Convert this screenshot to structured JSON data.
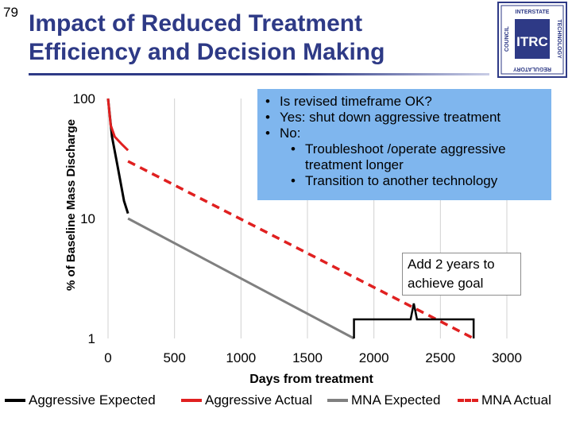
{
  "slide_number": "79",
  "title": {
    "line1": "Impact of Reduced Treatment",
    "line2": "Efficiency and Decision Making"
  },
  "logo": {
    "acronym": "ITRC",
    "words": [
      "INTERSTATE",
      "TECHNOLOGY",
      "REGULATORY",
      "COUNCIL"
    ]
  },
  "callout": {
    "items": [
      {
        "level": 1,
        "text": "Is revised timeframe OK?"
      },
      {
        "level": 1,
        "text": "Yes: shut down aggressive treatment"
      },
      {
        "level": 1,
        "text": "No:"
      },
      {
        "level": 2,
        "text": "Troubleshoot /operate aggressive"
      },
      {
        "level": 2,
        "text": "treatment longer",
        "continuation": true
      },
      {
        "level": 2,
        "text": "Transition to another technology"
      }
    ]
  },
  "annotation": {
    "line1": "Add 2 years to",
    "line2": "achieve goal"
  },
  "chart_data": {
    "type": "line",
    "title": "",
    "xlabel": "Days from treatment",
    "ylabel": "% of Baseline Mass Discharge",
    "xlim": [
      0,
      3000
    ],
    "ylim": [
      1,
      100
    ],
    "yscale": "log",
    "x_ticks": [
      0,
      500,
      1000,
      1500,
      2000,
      2500,
      3000
    ],
    "y_ticks": [
      1,
      10,
      100
    ],
    "grid": "vertical",
    "legend_position": "bottom",
    "series": [
      {
        "name": "Aggressive Expected",
        "color": "#000000",
        "dash": "solid",
        "x": [
          0,
          30,
          70,
          120,
          150
        ],
        "y": [
          100,
          48,
          28,
          14,
          11
        ]
      },
      {
        "name": "Aggressive Actual",
        "color": "#e02020",
        "dash": "solid",
        "x": [
          0,
          20,
          50,
          100,
          150
        ],
        "y": [
          100,
          60,
          48,
          42,
          37
        ]
      },
      {
        "name": "MNA Expected",
        "color": "#808080",
        "dash": "solid",
        "x": [
          150,
          1850
        ],
        "y": [
          10,
          1
        ]
      },
      {
        "name": "MNA Actual",
        "color": "#e02020",
        "dash": "dashed",
        "x": [
          150,
          2750
        ],
        "y": [
          30,
          1
        ]
      }
    ],
    "bracket": {
      "x_start": 1850,
      "x_end": 2750
    }
  }
}
